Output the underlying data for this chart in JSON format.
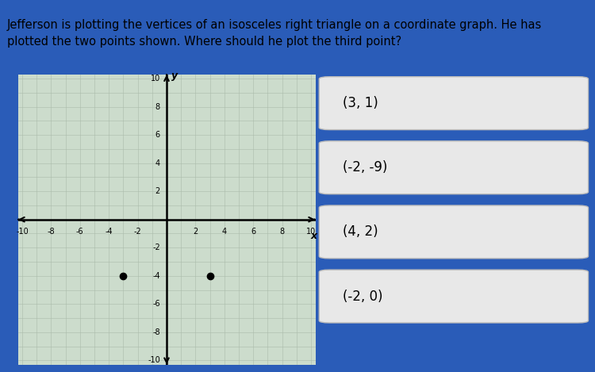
{
  "title_text": "Jefferson is plotting the vertices of an isosceles right triangle on a coordinate graph. He has\nplotted the two points shown. Where should he plot the third point?",
  "title_fontsize": 10.5,
  "bg_color": "#2a5cb8",
  "title_bg": "#e0e0e0",
  "graph_bg": "#ccdccc",
  "grid_color_minor": "#aabbaa",
  "grid_color_major": "#888888",
  "axis_range": [
    -10,
    10
  ],
  "points": [
    [
      -3,
      -4
    ],
    [
      3,
      -4
    ]
  ],
  "point_color": "black",
  "point_size": 6,
  "choices": [
    "(3, 1)",
    "(-2, -9)",
    "(4, 2)",
    "(-2, 0)"
  ],
  "choice_bg": "#e8e8e8",
  "choice_fontsize": 12,
  "tick_fontsize": 7,
  "axis_label_fontsize": 9
}
